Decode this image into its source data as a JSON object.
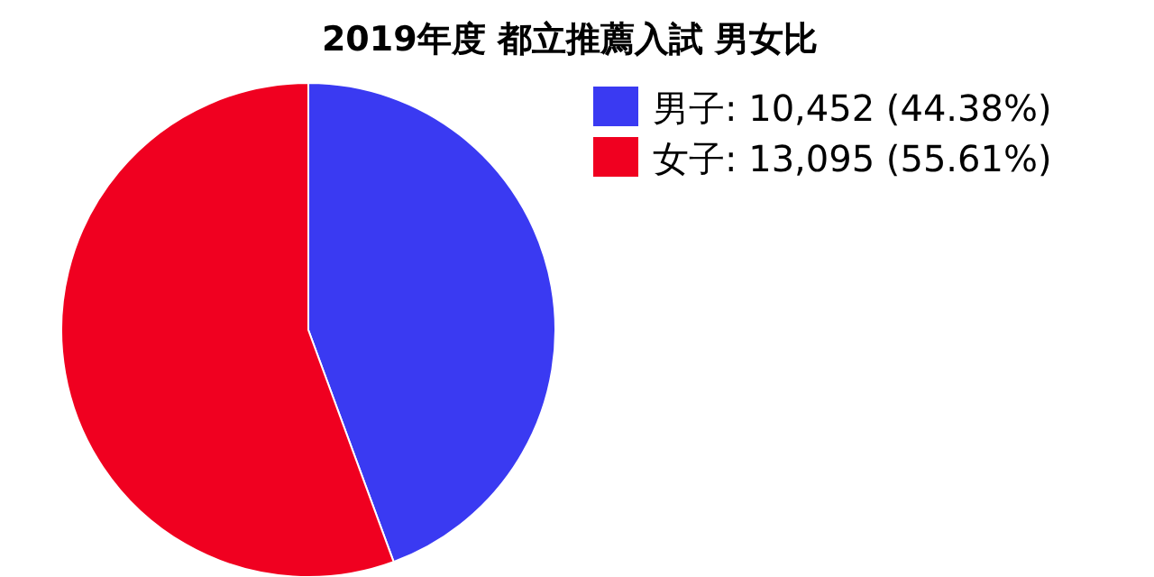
{
  "chart_data": {
    "type": "pie",
    "title": "2019年度 都立推薦入試 男女比",
    "categories": [
      "男子: 10,452 (44.38%)",
      "女子: 13,095 (55.61%)"
    ],
    "values": [
      10452,
      13095
    ],
    "colors": [
      "#3a3af2",
      "#f00020"
    ],
    "legend": "top right"
  }
}
